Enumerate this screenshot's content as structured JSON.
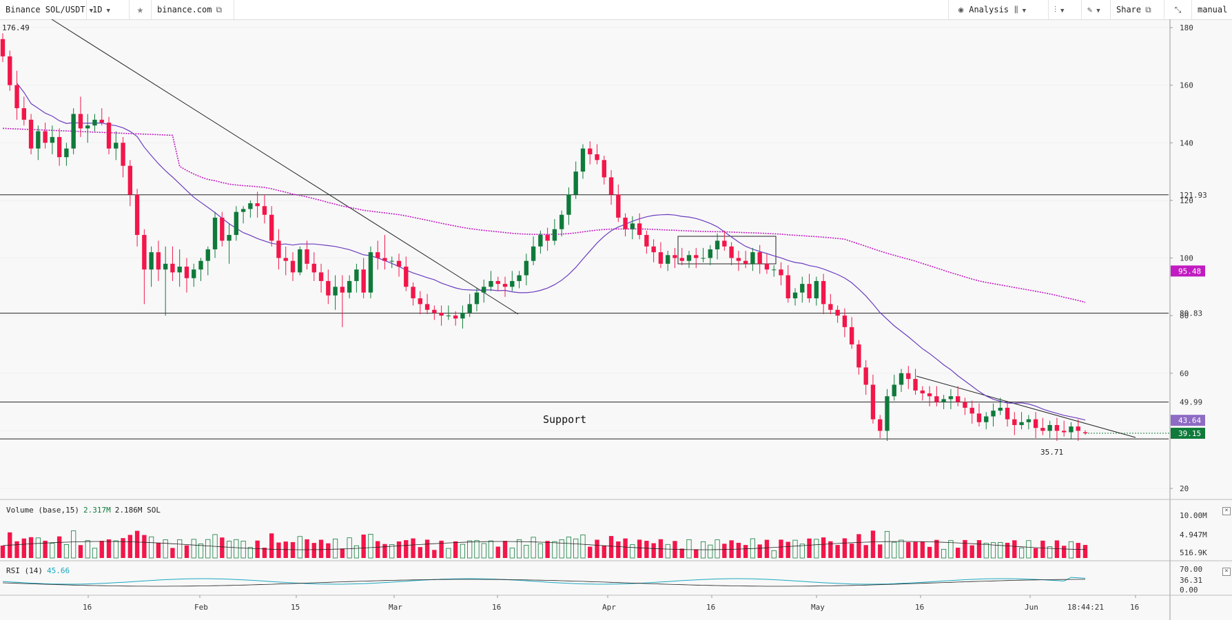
{
  "toolbar": {
    "symbol": "Binance SOL/USDT",
    "interval": "1D",
    "star_icon": "star-icon",
    "site": "binance.com",
    "analysis_label": "Analysis",
    "share_label": "Share",
    "manual_label": "manual"
  },
  "chart_data": {
    "type": "candlestick",
    "title": "",
    "price_axis": {
      "min": 20,
      "max": 180,
      "ticks": [
        20,
        40,
        60,
        80,
        100,
        120,
        140,
        160,
        180
      ]
    },
    "time_axis_labels": [
      "16",
      "Feb",
      "15",
      "Mar",
      "16",
      "Apr",
      "16",
      "May",
      "16",
      "Jun",
      "16"
    ],
    "current_time_label": "18:44:21",
    "high_label": "176.49",
    "low_label": "35.71",
    "horizontal_levels": [
      121.93,
      80.83,
      49.99,
      37.2
    ],
    "support_label": "Support",
    "price_badges": [
      {
        "value": "95.48",
        "color": "#c11bc1"
      },
      {
        "value": "43.64",
        "color": "#8e6bc4"
      },
      {
        "value": "39.15",
        "color": "#0f7a3a"
      }
    ],
    "plain_axis_labels": [
      "121.93",
      "80.83",
      "49.99"
    ],
    "up_color": "#0f7a3a",
    "down_color": "#f2164a",
    "ma_short_color": "#6a3bbf",
    "ma_long_color": "#c11bc1",
    "ohlc_start": [
      [
        176,
        178,
        168,
        170
      ],
      [
        170,
        172,
        158,
        160
      ],
      [
        160,
        165,
        148,
        152
      ],
      [
        152,
        156,
        146,
        148
      ],
      [
        148,
        150,
        136,
        138
      ],
      [
        138,
        146,
        134,
        144
      ],
      [
        144,
        147,
        138,
        140
      ],
      [
        140,
        146,
        136,
        142
      ],
      [
        142,
        145,
        132,
        135
      ],
      [
        135,
        140,
        132,
        138
      ],
      [
        138,
        152,
        136,
        150
      ],
      [
        150,
        156,
        142,
        145
      ],
      [
        145,
        150,
        140,
        146
      ],
      [
        146,
        150,
        144,
        148
      ],
      [
        148,
        152,
        146,
        147
      ],
      [
        147,
        149,
        136,
        138
      ],
      [
        138,
        144,
        134,
        140
      ],
      [
        140,
        142,
        128,
        132
      ],
      [
        132,
        134,
        118,
        122
      ],
      [
        122,
        124,
        104,
        108
      ],
      [
        108,
        110,
        84,
        96
      ],
      [
        96,
        104,
        90,
        102
      ],
      [
        102,
        106,
        92,
        96
      ],
      [
        96,
        104,
        80,
        98
      ],
      [
        98,
        104,
        92,
        95
      ],
      [
        95,
        103,
        90,
        97
      ],
      [
        97,
        100,
        88,
        93
      ],
      [
        93,
        98,
        90,
        96
      ],
      [
        96,
        100,
        92,
        99
      ],
      [
        99,
        104,
        94,
        103
      ],
      [
        103,
        116,
        100,
        114
      ],
      [
        114,
        116,
        104,
        106
      ],
      [
        106,
        112,
        98,
        108
      ],
      [
        108,
        118,
        106,
        116
      ],
      [
        116,
        118,
        112,
        117
      ],
      [
        117,
        120,
        114,
        119
      ],
      [
        119,
        123,
        114,
        118
      ],
      [
        118,
        122,
        112,
        115
      ],
      [
        115,
        118,
        104,
        106
      ],
      [
        106,
        110,
        96,
        100
      ],
      [
        100,
        104,
        94,
        99
      ],
      [
        99,
        102,
        92,
        95
      ],
      [
        95,
        104,
        94,
        103
      ],
      [
        103,
        106,
        96,
        98
      ],
      [
        98,
        102,
        92,
        95
      ],
      [
        95,
        98,
        88,
        92
      ],
      [
        92,
        96,
        84,
        87
      ],
      [
        87,
        94,
        82,
        90
      ],
      [
        90,
        94,
        76,
        88
      ],
      [
        88,
        94,
        86,
        92
      ],
      [
        92,
        98,
        88,
        96
      ],
      [
        96,
        100,
        86,
        88
      ],
      [
        88,
        104,
        86,
        102
      ],
      [
        102,
        106,
        96,
        100
      ],
      [
        100,
        108,
        96,
        99
      ]
    ],
    "ohlc_tail": [
      [
        39.5,
        40.2,
        38.6,
        39.15
      ]
    ],
    "volume": {
      "label": "Volume (base,15)",
      "value1": "2.317M",
      "value2": "2.186M SOL",
      "axis_ticks": [
        "10.00M",
        "4.947M",
        "516.9K"
      ]
    },
    "rsi": {
      "label": "RSI (14)",
      "value": "45.66",
      "axis_ticks": [
        "70.00",
        "36.31",
        "0.00"
      ]
    }
  }
}
